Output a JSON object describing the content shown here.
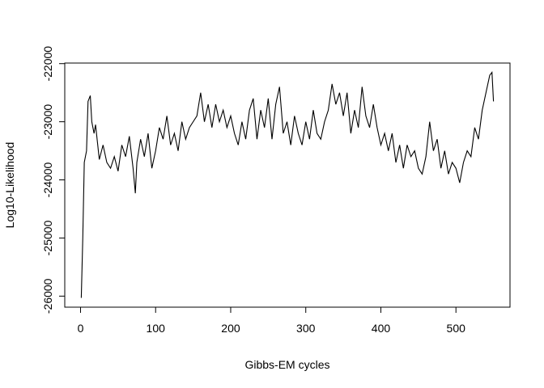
{
  "chart_data": {
    "type": "line",
    "x_label": "Gibbs-EM cycles",
    "y_label": "Log10-Likelihood",
    "x": [
      1,
      3,
      5,
      8,
      10,
      13,
      15,
      18,
      20,
      25,
      30,
      35,
      40,
      45,
      50,
      55,
      60,
      65,
      70,
      73,
      75,
      80,
      85,
      90,
      95,
      100,
      105,
      110,
      115,
      120,
      125,
      130,
      135,
      140,
      145,
      150,
      155,
      160,
      165,
      170,
      175,
      180,
      185,
      190,
      195,
      200,
      205,
      210,
      215,
      220,
      225,
      230,
      235,
      240,
      245,
      250,
      255,
      260,
      265,
      270,
      275,
      280,
      285,
      290,
      295,
      300,
      305,
      310,
      315,
      320,
      325,
      330,
      335,
      340,
      345,
      350,
      355,
      360,
      365,
      370,
      375,
      380,
      385,
      390,
      395,
      400,
      405,
      410,
      415,
      420,
      425,
      430,
      435,
      440,
      445,
      450,
      455,
      460,
      465,
      470,
      475,
      480,
      485,
      490,
      495,
      500,
      505,
      510,
      515,
      520,
      525,
      530,
      535,
      540,
      545,
      548,
      550
    ],
    "series": [
      {
        "color": "#000000",
        "values": [
          -26030,
          -25000,
          -23700,
          -23500,
          -22650,
          -22550,
          -23000,
          -23200,
          -23050,
          -23650,
          -23400,
          -23700,
          -23800,
          -23600,
          -23850,
          -23400,
          -23600,
          -23250,
          -23800,
          -24230,
          -23700,
          -23300,
          -23600,
          -23200,
          -23800,
          -23500,
          -23100,
          -23300,
          -22900,
          -23400,
          -23200,
          -23500,
          -23000,
          -23300,
          -23100,
          -23000,
          -22900,
          -22500,
          -23000,
          -22700,
          -23100,
          -22700,
          -23000,
          -22800,
          -23100,
          -22900,
          -23200,
          -23400,
          -23000,
          -23300,
          -22800,
          -22600,
          -23300,
          -22800,
          -23100,
          -22600,
          -23300,
          -22700,
          -22400,
          -23200,
          -23000,
          -23400,
          -22900,
          -23200,
          -23400,
          -23000,
          -23300,
          -22800,
          -23200,
          -23300,
          -23000,
          -22800,
          -22350,
          -22700,
          -22500,
          -22900,
          -22500,
          -23200,
          -22800,
          -23100,
          -22400,
          -22900,
          -23100,
          -22700,
          -23100,
          -23400,
          -23200,
          -23500,
          -23200,
          -23700,
          -23400,
          -23800,
          -23400,
          -23600,
          -23500,
          -23800,
          -23900,
          -23600,
          -23000,
          -23500,
          -23300,
          -23800,
          -23500,
          -23900,
          -23700,
          -23800,
          -24050,
          -23700,
          -23500,
          -23600,
          -23100,
          -23300,
          -22800,
          -22500,
          -22200,
          -22150,
          -22650
        ]
      }
    ],
    "xlim": [
      -21,
      572
    ],
    "ylim": [
      -26190,
      -21990
    ],
    "xticks": [
      0,
      100,
      200,
      300,
      400,
      500
    ],
    "yticks": [
      -26000,
      -25000,
      -24000,
      -23000,
      -22000
    ]
  }
}
